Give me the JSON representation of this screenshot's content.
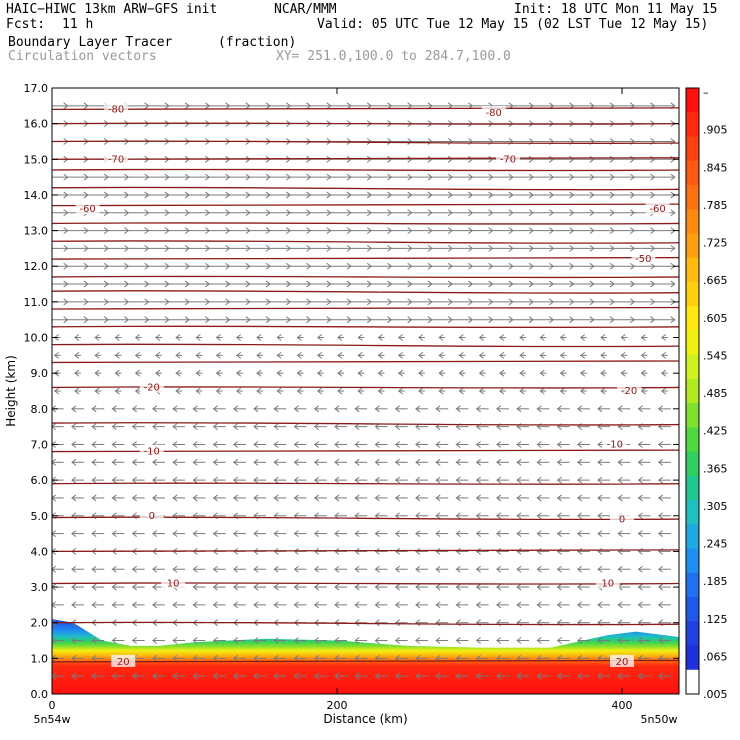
{
  "header": {
    "model": "HAIC−HIWC 13km ARW−GFS init",
    "org": "NCAR/MMM",
    "init": "Init: 18 UTC Mon 11 May 15",
    "fcst_label": "Fcst:",
    "fcst_value": "11 h",
    "valid": "Valid: 05 UTC Tue 12 May 15 (02 LST Tue 12 May 15)",
    "field": "Boundary Layer Tracer",
    "units": "(fraction)",
    "overlay": "Circulation vectors",
    "xy": "XY= 251.0,100.0 to 284.7,100.0"
  },
  "chart_data": {
    "type": "heatmap",
    "ylabel": "Height (km)",
    "xlabel": "Distance (km)",
    "xlim": [
      0,
      440
    ],
    "ylim": [
      0,
      17
    ],
    "yticks": [
      "0.0",
      "1.0",
      "2.0",
      "3.0",
      "4.0",
      "5.0",
      "6.0",
      "7.0",
      "8.0",
      "9.0",
      "10.0",
      "11.0",
      "12.0",
      "13.0",
      "14.0",
      "15.0",
      "16.0",
      "17.0"
    ],
    "xticks": [
      {
        "value": 0,
        "label": "0"
      },
      {
        "value": 200,
        "label": "200"
      },
      {
        "value": 400,
        "label": "400"
      }
    ],
    "x_left_label": "5n54w",
    "x_right_label": "5n50w",
    "colorbar": {
      "labels": [
        "–",
        ".905",
        ".845",
        ".785",
        ".725",
        ".665",
        ".605",
        ".545",
        ".485",
        ".425",
        ".365",
        ".305",
        ".245",
        ".185",
        ".125",
        ".065",
        ".005"
      ],
      "colors": [
        "#ff1010",
        "#ff2a10",
        "#ff4010",
        "#ff5a10",
        "#ff7010",
        "#ff8a10",
        "#ffa010",
        "#ffbb10",
        "#ffd010",
        "#ffe810",
        "#f0f010",
        "#d0f020",
        "#b0ea20",
        "#80e030",
        "#50d840",
        "#30d060",
        "#20c890",
        "#20c0c0",
        "#20a8e0",
        "#2090f0",
        "#2070f0",
        "#2058e8",
        "#2040e0",
        "#2030d8",
        "#ffffff"
      ]
    },
    "tracer_top_km": [
      {
        "x": 0,
        "y": 2.1
      },
      {
        "x": 15,
        "y": 2.0
      },
      {
        "x": 35,
        "y": 1.5
      },
      {
        "x": 55,
        "y": 1.35
      },
      {
        "x": 75,
        "y": 1.35
      },
      {
        "x": 100,
        "y": 1.45
      },
      {
        "x": 150,
        "y": 1.55
      },
      {
        "x": 200,
        "y": 1.5
      },
      {
        "x": 250,
        "y": 1.35
      },
      {
        "x": 300,
        "y": 1.3
      },
      {
        "x": 350,
        "y": 1.3
      },
      {
        "x": 390,
        "y": 1.65
      },
      {
        "x": 410,
        "y": 1.75
      },
      {
        "x": 440,
        "y": 1.6
      }
    ],
    "contours": [
      {
        "label": "-80",
        "positions": [
          {
            "x": 45,
            "y": 16.4
          },
          {
            "x": 310,
            "y": 16.3
          }
        ]
      },
      {
        "label": "-70",
        "positions": [
          {
            "x": 45,
            "y": 15.0
          },
          {
            "x": 320,
            "y": 15.0
          }
        ]
      },
      {
        "label": "-60",
        "positions": [
          {
            "x": 25,
            "y": 13.6
          },
          {
            "x": 425,
            "y": 13.6
          }
        ]
      },
      {
        "label": "-50",
        "positions": [
          {
            "x": 415,
            "y": 12.2
          }
        ]
      },
      {
        "label": "-20",
        "positions": [
          {
            "x": 70,
            "y": 8.6
          },
          {
            "x": 405,
            "y": 8.5
          }
        ]
      },
      {
        "label": "-10",
        "positions": [
          {
            "x": 70,
            "y": 6.8
          },
          {
            "x": 395,
            "y": 7.0
          }
        ]
      },
      {
        "label": "0",
        "positions": [
          {
            "x": 70,
            "y": 5.0
          },
          {
            "x": 400,
            "y": 4.9
          }
        ]
      },
      {
        "label": "10",
        "positions": [
          {
            "x": 85,
            "y": 3.1
          },
          {
            "x": 390,
            "y": 3.1
          }
        ]
      },
      {
        "label": "20",
        "positions": [
          {
            "x": 50,
            "y": 0.9
          },
          {
            "x": 400,
            "y": 0.9
          }
        ]
      }
    ],
    "contour_lines_km": [
      16.4,
      16.0,
      15.5,
      15.0,
      14.7,
      14.2,
      13.7,
      13.2,
      12.7,
      12.2,
      11.7,
      11.3,
      10.8,
      10.3,
      9.8,
      9.3,
      8.6,
      7.6,
      6.8,
      5.9,
      4.95,
      4.0,
      3.1,
      2.0,
      0.9
    ]
  }
}
